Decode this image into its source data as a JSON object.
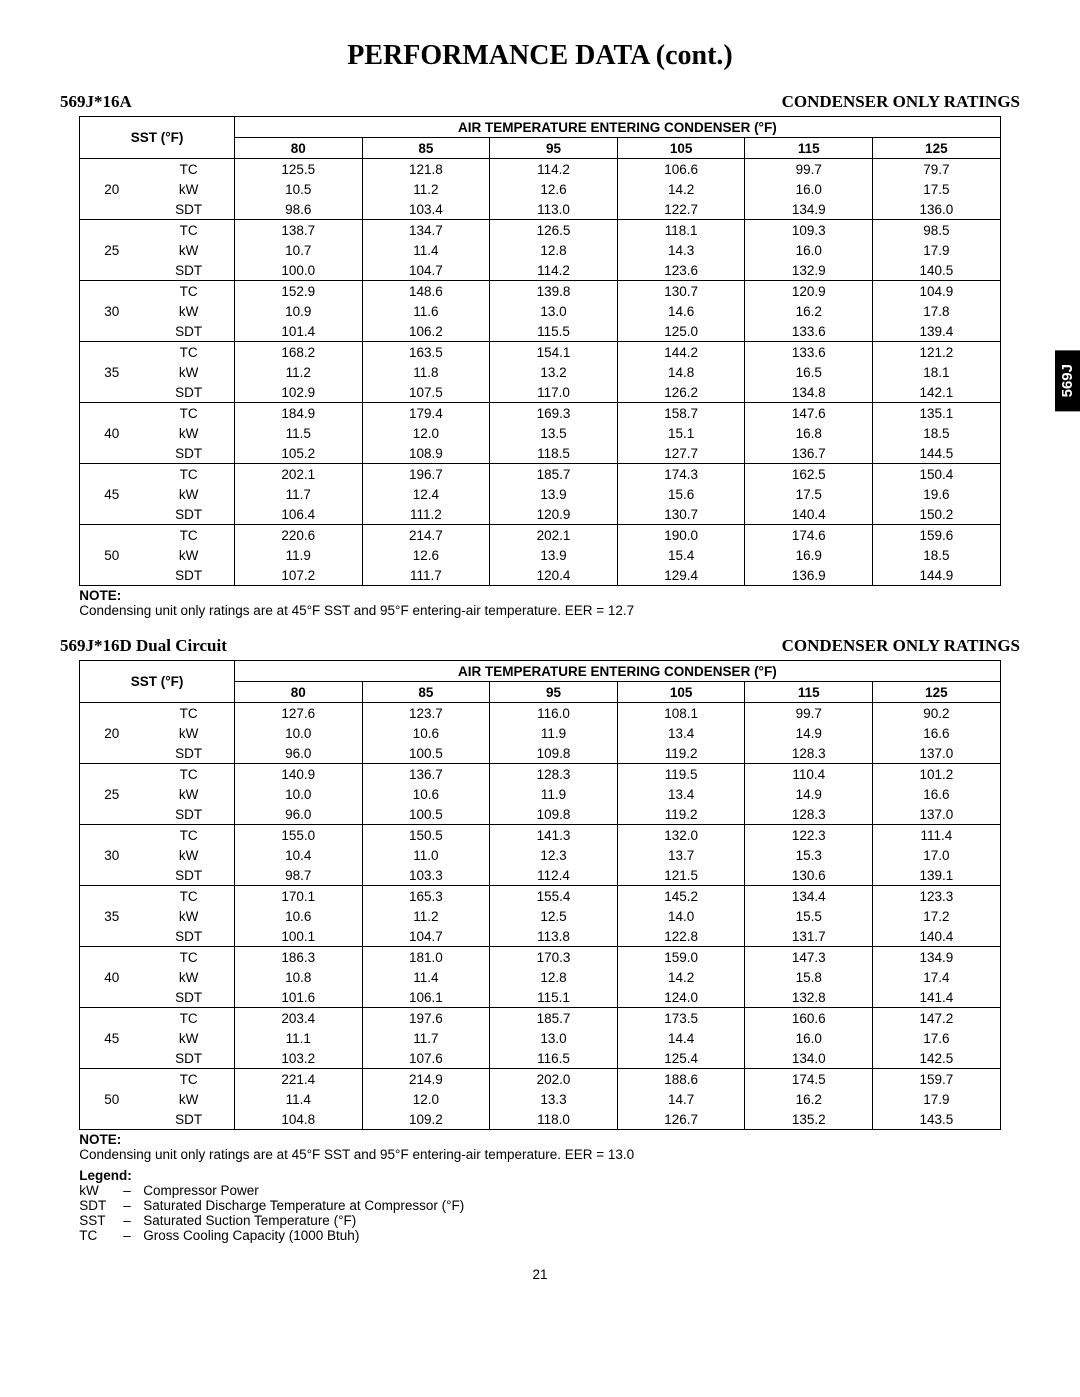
{
  "page_title": "PERFORMANCE DATA (cont.)",
  "side_tab": "569J",
  "page_number": "21",
  "air_header": "AIR TEMPERATURE ENTERING CONDENSER (°F)",
  "sst_header": "SST (°F)",
  "air_temps": [
    "80",
    "85",
    "95",
    "105",
    "115",
    "125"
  ],
  "sst_values": [
    "20",
    "25",
    "30",
    "35",
    "40",
    "45",
    "50"
  ],
  "metrics": [
    "TC",
    "kW",
    "SDT"
  ],
  "table1": {
    "left_title": "569J*16A",
    "right_title": "CONDENSER ONLY RATINGS",
    "rows": {
      "20": {
        "TC": [
          "125.5",
          "121.8",
          "114.2",
          "106.6",
          "99.7",
          "79.7"
        ],
        "kW": [
          "10.5",
          "11.2",
          "12.6",
          "14.2",
          "16.0",
          "17.5"
        ],
        "SDT": [
          "98.6",
          "103.4",
          "113.0",
          "122.7",
          "134.9",
          "136.0"
        ]
      },
      "25": {
        "TC": [
          "138.7",
          "134.7",
          "126.5",
          "118.1",
          "109.3",
          "98.5"
        ],
        "kW": [
          "10.7",
          "11.4",
          "12.8",
          "14.3",
          "16.0",
          "17.9"
        ],
        "SDT": [
          "100.0",
          "104.7",
          "114.2",
          "123.6",
          "132.9",
          "140.5"
        ]
      },
      "30": {
        "TC": [
          "152.9",
          "148.6",
          "139.8",
          "130.7",
          "120.9",
          "104.9"
        ],
        "kW": [
          "10.9",
          "11.6",
          "13.0",
          "14.6",
          "16.2",
          "17.8"
        ],
        "SDT": [
          "101.4",
          "106.2",
          "115.5",
          "125.0",
          "133.6",
          "139.4"
        ]
      },
      "35": {
        "TC": [
          "168.2",
          "163.5",
          "154.1",
          "144.2",
          "133.6",
          "121.2"
        ],
        "kW": [
          "11.2",
          "11.8",
          "13.2",
          "14.8",
          "16.5",
          "18.1"
        ],
        "SDT": [
          "102.9",
          "107.5",
          "117.0",
          "126.2",
          "134.8",
          "142.1"
        ]
      },
      "40": {
        "TC": [
          "184.9",
          "179.4",
          "169.3",
          "158.7",
          "147.6",
          "135.1"
        ],
        "kW": [
          "11.5",
          "12.0",
          "13.5",
          "15.1",
          "16.8",
          "18.5"
        ],
        "SDT": [
          "105.2",
          "108.9",
          "118.5",
          "127.7",
          "136.7",
          "144.5"
        ]
      },
      "45": {
        "TC": [
          "202.1",
          "196.7",
          "185.7",
          "174.3",
          "162.5",
          "150.4"
        ],
        "kW": [
          "11.7",
          "12.4",
          "13.9",
          "15.6",
          "17.5",
          "19.6"
        ],
        "SDT": [
          "106.4",
          "111.2",
          "120.9",
          "130.7",
          "140.4",
          "150.2"
        ]
      },
      "50": {
        "TC": [
          "220.6",
          "214.7",
          "202.1",
          "190.0",
          "174.6",
          "159.6"
        ],
        "kW": [
          "11.9",
          "12.6",
          "13.9",
          "15.4",
          "16.9",
          "18.5"
        ],
        "SDT": [
          "107.2",
          "111.7",
          "120.4",
          "129.4",
          "136.9",
          "144.9"
        ]
      }
    },
    "note_label": "NOTE",
    "note_text": "Condensing unit only ratings are at 45°F SST and 95°F entering-air temperature. EER = 12.7"
  },
  "table2": {
    "left_title": "569J*16D Dual Circuit",
    "right_title": "CONDENSER ONLY RATINGS",
    "rows": {
      "20": {
        "TC": [
          "127.6",
          "123.7",
          "116.0",
          "108.1",
          "99.7",
          "90.2"
        ],
        "kW": [
          "10.0",
          "10.6",
          "11.9",
          "13.4",
          "14.9",
          "16.6"
        ],
        "SDT": [
          "96.0",
          "100.5",
          "109.8",
          "119.2",
          "128.3",
          "137.0"
        ]
      },
      "25": {
        "TC": [
          "140.9",
          "136.7",
          "128.3",
          "119.5",
          "110.4",
          "101.2"
        ],
        "kW": [
          "10.0",
          "10.6",
          "11.9",
          "13.4",
          "14.9",
          "16.6"
        ],
        "SDT": [
          "96.0",
          "100.5",
          "109.8",
          "119.2",
          "128.3",
          "137.0"
        ]
      },
      "30": {
        "TC": [
          "155.0",
          "150.5",
          "141.3",
          "132.0",
          "122.3",
          "111.4"
        ],
        "kW": [
          "10.4",
          "11.0",
          "12.3",
          "13.7",
          "15.3",
          "17.0"
        ],
        "SDT": [
          "98.7",
          "103.3",
          "112.4",
          "121.5",
          "130.6",
          "139.1"
        ]
      },
      "35": {
        "TC": [
          "170.1",
          "165.3",
          "155.4",
          "145.2",
          "134.4",
          "123.3"
        ],
        "kW": [
          "10.6",
          "11.2",
          "12.5",
          "14.0",
          "15.5",
          "17.2"
        ],
        "SDT": [
          "100.1",
          "104.7",
          "113.8",
          "122.8",
          "131.7",
          "140.4"
        ]
      },
      "40": {
        "TC": [
          "186.3",
          "181.0",
          "170.3",
          "159.0",
          "147.3",
          "134.9"
        ],
        "kW": [
          "10.8",
          "11.4",
          "12.8",
          "14.2",
          "15.8",
          "17.4"
        ],
        "SDT": [
          "101.6",
          "106.1",
          "115.1",
          "124.0",
          "132.8",
          "141.4"
        ]
      },
      "45": {
        "TC": [
          "203.4",
          "197.6",
          "185.7",
          "173.5",
          "160.6",
          "147.2"
        ],
        "kW": [
          "11.1",
          "11.7",
          "13.0",
          "14.4",
          "16.0",
          "17.6"
        ],
        "SDT": [
          "103.2",
          "107.6",
          "116.5",
          "125.4",
          "134.0",
          "142.5"
        ]
      },
      "50": {
        "TC": [
          "221.4",
          "214.9",
          "202.0",
          "188.6",
          "174.5",
          "159.7"
        ],
        "kW": [
          "11.4",
          "12.0",
          "13.3",
          "14.7",
          "16.2",
          "17.9"
        ],
        "SDT": [
          "104.8",
          "109.2",
          "118.0",
          "126.7",
          "135.2",
          "143.5"
        ]
      }
    },
    "note_label": "NOTE",
    "note_text": "Condensing unit only ratings are at 45°F SST and 95°F entering-air temperature. EER = 13.0"
  },
  "legend": {
    "label": "Legend:",
    "items": [
      {
        "key": "kW",
        "desc": "Compressor Power"
      },
      {
        "key": "SDT",
        "desc": "Saturated Discharge Temperature at Compressor (°F)"
      },
      {
        "key": "SST",
        "desc": "Saturated Suction Temperature (°F)"
      },
      {
        "key": "TC",
        "desc": "Gross Cooling Capacity (1000 Btuh)"
      }
    ]
  }
}
